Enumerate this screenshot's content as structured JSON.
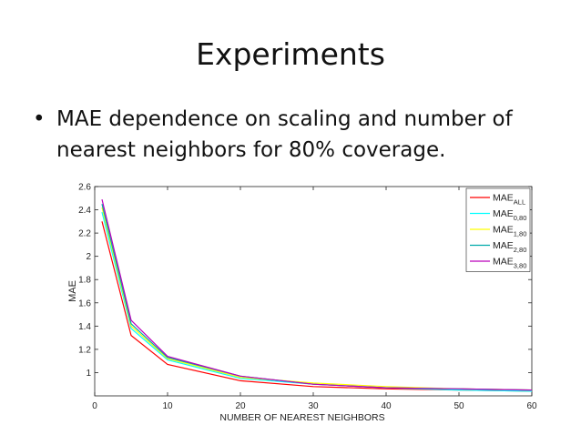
{
  "slide": {
    "title": "Experiments",
    "bullet_symbol": "•",
    "bullet_text": "MAE dependence on scaling and number of nearest neighbors for 80% coverage."
  },
  "chart_data": {
    "type": "line",
    "title": "",
    "xlabel": "NUMBER OF NEAREST NEIGHBORS",
    "ylabel": "MAE",
    "xlim": [
      0,
      60
    ],
    "ylim": [
      0.8,
      2.6
    ],
    "xticks": [
      0,
      10,
      20,
      30,
      40,
      50,
      60
    ],
    "yticks": [
      1,
      1.2,
      1.4,
      1.6,
      1.8,
      2,
      2.2,
      2.4,
      2.6
    ],
    "grid": false,
    "legend_position": "top-right",
    "series": [
      {
        "name": "MAE",
        "subscript": "ALL",
        "color": "#ff0000",
        "x": [
          1,
          5,
          10,
          20,
          30,
          40,
          50,
          60
        ],
        "y": [
          2.3,
          1.32,
          1.07,
          0.93,
          0.88,
          0.86,
          0.85,
          0.84
        ]
      },
      {
        "name": "MAE",
        "subscript": "0,80",
        "color": "#00ffff",
        "x": [
          1,
          5,
          10,
          20,
          30,
          40,
          50,
          60
        ],
        "y": [
          2.38,
          1.38,
          1.11,
          0.95,
          0.9,
          0.87,
          0.85,
          0.84
        ]
      },
      {
        "name": "MAE",
        "subscript": "1,80",
        "color": "#ffff00",
        "x": [
          1,
          5,
          10,
          20,
          30,
          40,
          50,
          60
        ],
        "y": [
          2.42,
          1.4,
          1.12,
          0.96,
          0.91,
          0.88,
          0.86,
          0.85
        ]
      },
      {
        "name": "MAE",
        "subscript": "2,80",
        "color": "#00aaaa",
        "x": [
          1,
          5,
          10,
          20,
          30,
          40,
          50,
          60
        ],
        "y": [
          2.45,
          1.42,
          1.13,
          0.97,
          0.9,
          0.87,
          0.86,
          0.85
        ]
      },
      {
        "name": "MAE",
        "subscript": "3,80",
        "color": "#bb00bb",
        "x": [
          1,
          5,
          10,
          20,
          30,
          40,
          50,
          60
        ],
        "y": [
          2.49,
          1.45,
          1.14,
          0.97,
          0.9,
          0.87,
          0.86,
          0.85
        ]
      }
    ]
  }
}
